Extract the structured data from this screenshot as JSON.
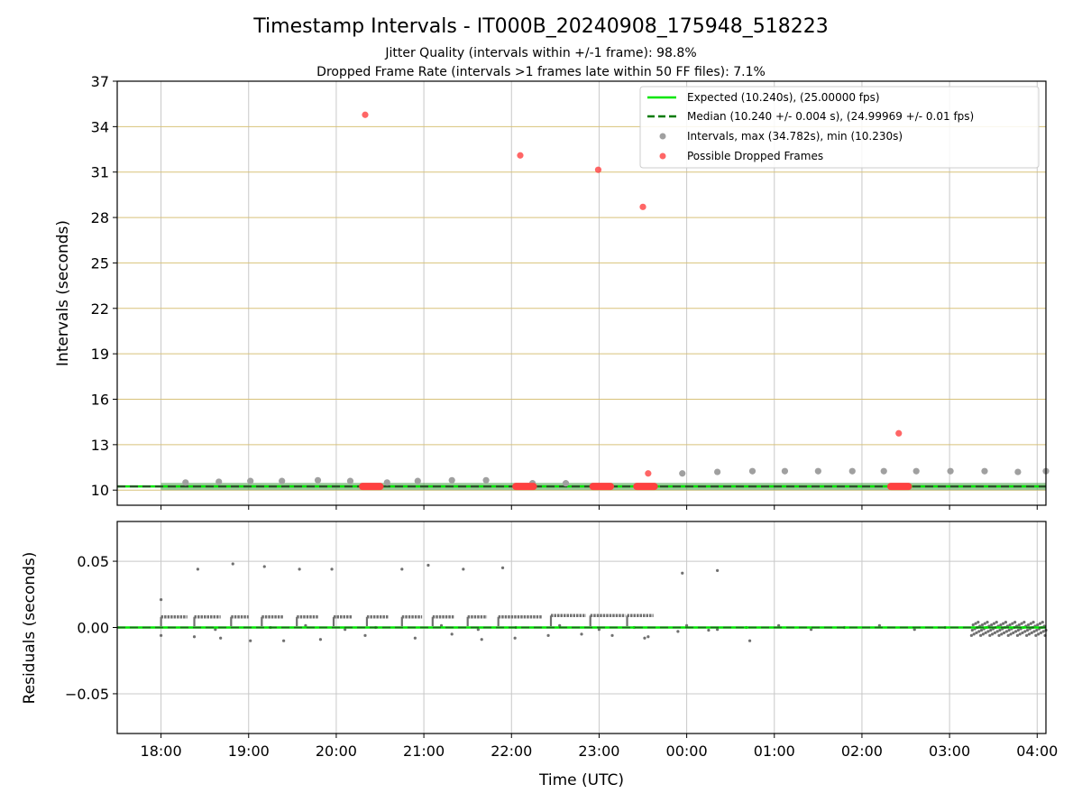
{
  "figure": {
    "title": "Timestamp Intervals - IT000B_20240908_175948_518223",
    "subtitle_1": "Jitter Quality (intervals within +/-1 frame): 98.8%",
    "subtitle_2": "Dropped Frame Rate (intervals >1 frames late within 50 FF files): 7.1%"
  },
  "colors": {
    "expected": "#00e600",
    "median": "#007a00",
    "intervals": "#a0a0a0",
    "dropped": "#ff4040",
    "ygrid_top": "#d8c27a",
    "grid": "#c8c8c8",
    "residual_points": "#707070"
  },
  "chart_data": [
    {
      "type": "scatter",
      "ylabel": "Intervals (seconds)",
      "ylim": [
        9,
        37
      ],
      "yticks": [
        10,
        13,
        16,
        19,
        22,
        25,
        28,
        31,
        34,
        37
      ],
      "ytick_labels": [
        "10",
        "13",
        "16",
        "19",
        "22",
        "25",
        "28",
        "31",
        "34",
        "37"
      ],
      "xlim_hours": [
        17.5,
        28.1
      ],
      "xticks_hours": [
        18,
        19,
        20,
        21,
        22,
        23,
        24,
        25,
        26,
        27,
        28
      ],
      "xtick_labels": [
        "18:00",
        "19:00",
        "20:00",
        "21:00",
        "22:00",
        "23:00",
        "00:00",
        "01:00",
        "02:00",
        "03:00",
        "04:00"
      ],
      "grid": "on",
      "legend_position": "top-right",
      "legend": [
        {
          "label": "Expected (10.240s), (25.00000 fps)",
          "style": "solid-line"
        },
        {
          "label": "Median (10.240 +/- 0.004 s), (24.99969 +/- 0.01 fps)",
          "style": "dashed-line"
        },
        {
          "label": "Intervals, max (34.782s), min (10.230s)",
          "style": "gray-dot"
        },
        {
          "label": "Possible Dropped Frames",
          "style": "red-dot"
        }
      ],
      "expected": 10.24,
      "median": 10.24,
      "interval_points": {
        "x": [
          18.28,
          18.66,
          19.02,
          19.38,
          19.79,
          20.16,
          20.58,
          20.93,
          21.32,
          21.71,
          22.24,
          22.62,
          23.95,
          24.35,
          24.75,
          25.12,
          25.5,
          25.89,
          26.25,
          26.62,
          27.01,
          27.4,
          27.78,
          28.1
        ],
        "y": [
          10.5,
          10.55,
          10.6,
          10.6,
          10.65,
          10.6,
          10.5,
          10.6,
          10.65,
          10.65,
          10.45,
          10.45,
          11.1,
          11.2,
          11.25,
          11.25,
          11.25,
          11.25,
          11.25,
          11.25,
          11.25,
          11.25,
          11.2,
          11.25
        ]
      },
      "dropped_points": {
        "x": [
          20.33,
          22.1,
          22.99,
          23.5,
          23.56,
          26.42
        ],
        "y": [
          34.78,
          32.1,
          31.15,
          28.7,
          11.1,
          13.75
        ]
      },
      "dropped_clusters": [
        {
          "x_start": 20.3,
          "x_end": 20.5,
          "y": 10.24
        },
        {
          "x_start": 22.05,
          "x_end": 22.25,
          "y": 10.24
        },
        {
          "x_start": 22.93,
          "x_end": 23.13,
          "y": 10.24
        },
        {
          "x_start": 23.43,
          "x_end": 23.63,
          "y": 10.24
        },
        {
          "x_start": 26.33,
          "x_end": 26.53,
          "y": 10.24
        }
      ]
    },
    {
      "type": "scatter",
      "xlabel": "Time (UTC)",
      "ylabel": "Residuals (seconds)",
      "ylim": [
        -0.08,
        0.08
      ],
      "yticks": [
        -0.05,
        0.0,
        0.05
      ],
      "ytick_labels": [
        "−0.05",
        "0.00",
        "0.05"
      ],
      "xlim_hours": [
        17.5,
        28.1
      ],
      "grid": "on",
      "zero_line": 0.0,
      "outliers": {
        "x": [
          18.0,
          18.42,
          18.82,
          19.18,
          19.58,
          19.95,
          20.75,
          21.05,
          21.45,
          21.9,
          23.95,
          24.35,
          18.0,
          18.38,
          18.68,
          19.02,
          19.4,
          19.82,
          20.33,
          20.9,
          21.32,
          21.66,
          22.04,
          22.42,
          22.8,
          23.15,
          23.52,
          23.56,
          23.9,
          24.25,
          24.72
        ],
        "y": [
          0.021,
          0.044,
          0.048,
          0.046,
          0.044,
          0.044,
          0.044,
          0.047,
          0.044,
          0.045,
          0.041,
          0.043,
          -0.006,
          -0.007,
          -0.008,
          -0.01,
          -0.01,
          -0.009,
          -0.006,
          -0.008,
          -0.005,
          -0.009,
          -0.008,
          -0.006,
          -0.005,
          -0.006,
          -0.008,
          -0.007,
          -0.003,
          -0.002,
          -0.01
        ]
      },
      "band_segments": [
        {
          "x_start": 18.0,
          "x_end": 18.3,
          "y": 0.008
        },
        {
          "x_start": 18.38,
          "x_end": 18.68,
          "y": 0.008
        },
        {
          "x_start": 18.8,
          "x_end": 19.0,
          "y": 0.008
        },
        {
          "x_start": 19.15,
          "x_end": 19.4,
          "y": 0.008
        },
        {
          "x_start": 19.55,
          "x_end": 19.8,
          "y": 0.008
        },
        {
          "x_start": 19.97,
          "x_end": 20.18,
          "y": 0.008
        },
        {
          "x_start": 20.35,
          "x_end": 20.6,
          "y": 0.008
        },
        {
          "x_start": 20.75,
          "x_end": 20.98,
          "y": 0.008
        },
        {
          "x_start": 21.1,
          "x_end": 21.35,
          "y": 0.008
        },
        {
          "x_start": 21.5,
          "x_end": 21.72,
          "y": 0.008
        },
        {
          "x_start": 21.85,
          "x_end": 22.35,
          "y": 0.008
        },
        {
          "x_start": 22.45,
          "x_end": 22.85,
          "y": 0.009
        },
        {
          "x_start": 22.9,
          "x_end": 23.3,
          "y": 0.009
        },
        {
          "x_start": 23.32,
          "x_end": 23.62,
          "y": 0.009
        }
      ],
      "dense_cluster": {
        "x_start": 27.25,
        "x_end": 28.1,
        "y_min": -0.006,
        "y_max": 0.004
      }
    }
  ]
}
